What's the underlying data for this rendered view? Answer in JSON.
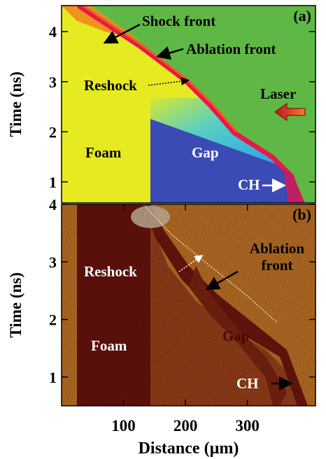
{
  "chart_data": [
    {
      "type": "image",
      "panel_label": "(a)",
      "ylabel": "Time (ns)",
      "xlim": [
        0,
        410
      ],
      "ylim": [
        0.58,
        4.52
      ],
      "yticks": [
        1,
        2,
        3,
        4
      ],
      "annotations": [
        "Shock front",
        "Ablation front",
        "Reshock",
        "Laser",
        "Foam",
        "Gap",
        "CH"
      ]
    },
    {
      "type": "image",
      "panel_label": "(b)",
      "ylabel": "Time (ns)",
      "xlabel": "Distance (µm)",
      "xlim": [
        0,
        410
      ],
      "ylim": [
        0.5,
        4.0
      ],
      "yticks": [
        1,
        2,
        3,
        4
      ],
      "xticks": [
        100,
        200,
        300
      ],
      "annotations": [
        "Ablation front",
        "Reshock",
        "Foam",
        "Gap",
        "CH"
      ]
    }
  ]
}
